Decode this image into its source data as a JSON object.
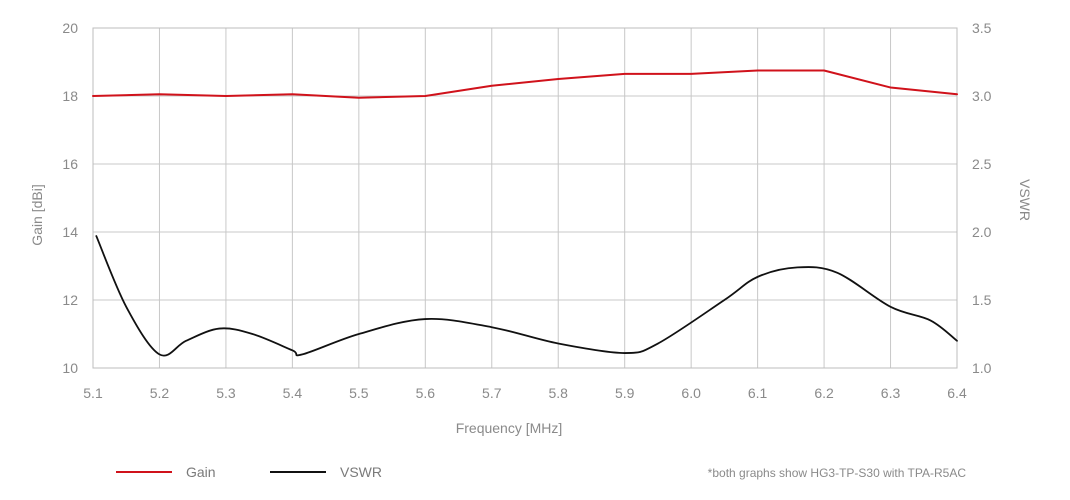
{
  "chart_data": {
    "type": "line",
    "title": "",
    "xlabel": "Frequency [MHz]",
    "ylabel_left": "Gain [dBi]",
    "ylabel_right": "VSWR",
    "x_ticks": [
      "5.1",
      "5.2",
      "5.3",
      "5.4",
      "5.5",
      "5.6",
      "5.7",
      "5.8",
      "5.9",
      "6.0",
      "6.1",
      "6.2",
      "6.3",
      "6.4"
    ],
    "y_left_ticks": [
      "20",
      "18",
      "16",
      "14",
      "12",
      "10"
    ],
    "y_right_ticks": [
      "3.5",
      "3.0",
      "2.5",
      "2.0",
      "1.5",
      "1.0"
    ],
    "xlim": [
      5.1,
      6.4
    ],
    "ylim_left": [
      10,
      20
    ],
    "ylim_right": [
      1.0,
      3.5
    ],
    "grid": true,
    "series": [
      {
        "name": "Gain",
        "axis": "left",
        "color": "#d0121b",
        "x": [
          5.1,
          5.2,
          5.3,
          5.4,
          5.5,
          5.6,
          5.7,
          5.8,
          5.9,
          6.0,
          6.1,
          6.2,
          6.3,
          6.4
        ],
        "values": [
          18.0,
          18.05,
          18.0,
          18.05,
          17.95,
          18.0,
          18.3,
          18.5,
          18.65,
          18.65,
          18.75,
          18.75,
          18.25,
          18.05
        ]
      },
      {
        "name": "VSWR",
        "axis": "right",
        "color": "#111111",
        "x": [
          5.105,
          5.15,
          5.2,
          5.24,
          5.29,
          5.34,
          5.4,
          5.415,
          5.5,
          5.6,
          5.7,
          5.8,
          5.9,
          5.95,
          6.05,
          6.1,
          6.16,
          6.22,
          6.3,
          6.36,
          6.4
        ],
        "values": [
          1.97,
          1.45,
          1.1,
          1.2,
          1.29,
          1.25,
          1.13,
          1.1,
          1.25,
          1.36,
          1.3,
          1.18,
          1.11,
          1.18,
          1.5,
          1.67,
          1.74,
          1.7,
          1.45,
          1.35,
          1.2
        ]
      }
    ]
  },
  "legend": [
    {
      "label": "Gain",
      "color": "#d0121b"
    },
    {
      "label": "VSWR",
      "color": "#111111"
    }
  ],
  "footnote": "*both graphs show HG3-TP-S30 with TPA-R5AC"
}
